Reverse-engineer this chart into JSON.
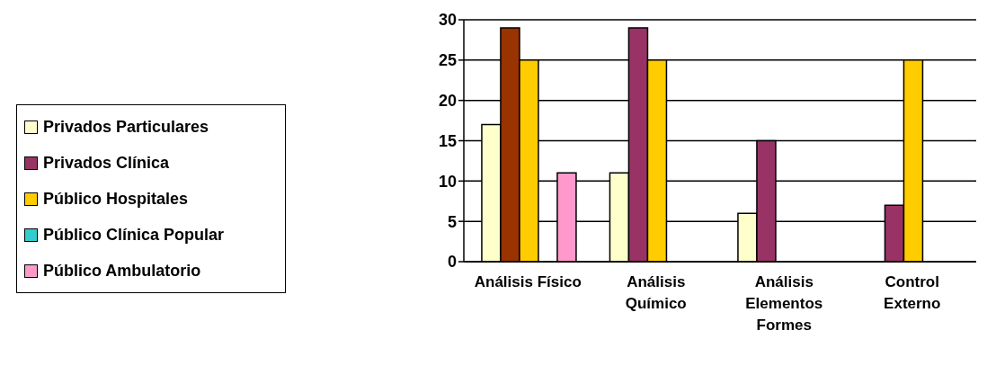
{
  "chart_data": {
    "type": "bar",
    "categories": [
      "Análisis Físico",
      "Análisis Químico",
      "Análisis Elementos Formes",
      "Control Externo"
    ],
    "series": [
      {
        "name": "Privados Particulares",
        "color": "#ffffcc",
        "values": [
          17,
          11,
          6,
          0
        ]
      },
      {
        "name": "Privados Clínica",
        "color": "#993366",
        "colors": [
          "#993300",
          "#993366",
          "#993366",
          "#993366"
        ],
        "values": [
          29,
          29,
          15,
          7
        ]
      },
      {
        "name": "Público Hospitales",
        "color": "#ffcc00",
        "values": [
          25,
          25,
          0,
          25
        ]
      },
      {
        "name": "Público Clínica Popular",
        "color": "#33cccc",
        "values": [
          0,
          0,
          0,
          0
        ]
      },
      {
        "name": "Público Ambulatorio",
        "color": "#ff99cc",
        "values": [
          11,
          0,
          0,
          0
        ]
      }
    ],
    "ylim": [
      0,
      30
    ],
    "yticks": [
      0,
      5,
      10,
      15,
      20,
      25,
      30
    ],
    "grid": "y",
    "legend": "left"
  }
}
